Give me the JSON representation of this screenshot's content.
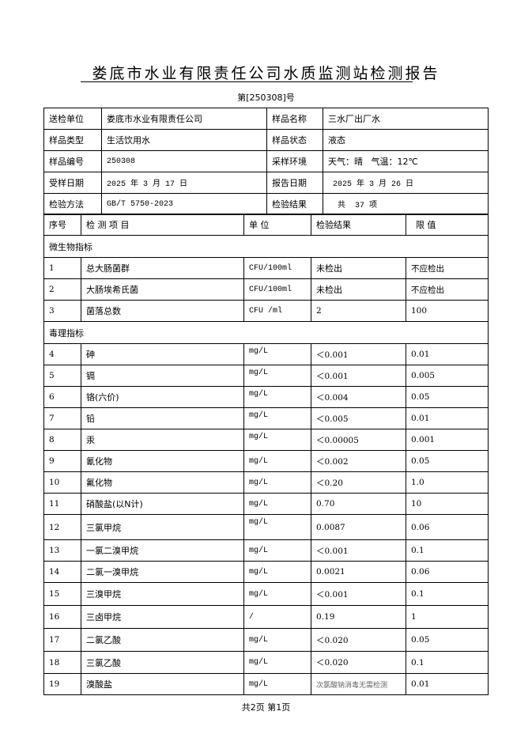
{
  "title": "娄底市水业有限责任公司水质监测站检测报告",
  "doc_number": "第[250308]号",
  "info": [
    {
      "label1": "送检单位",
      "value1": "娄底市水业有限责任公司",
      "label2": "样品名称",
      "value2": "三水厂出厂水"
    },
    {
      "label1": "样品类型",
      "value1": "生活饮用水",
      "label2": "样品状态",
      "value2": "液态"
    },
    {
      "label1": "样品编号",
      "value1": "250308",
      "label2": "采样环境",
      "value2": "天气：晴   气温：12℃"
    },
    {
      "label1": "受样日期",
      "value1": "2025 年 3 月 17 日",
      "label2": "报告日期",
      "value2": " 2025 年 3 月 26 日"
    },
    {
      "label1": "检验方法",
      "value1": "GB/T 5750-2023",
      "label2": "检验结果",
      "value2": "  共  37 项"
    }
  ],
  "headers": {
    "no": "序号",
    "item": "检 测 项 目",
    "unit": "单  位",
    "result": "检验结果",
    "limit": "限  值"
  },
  "rows": [
    {
      "section": "微生物指标"
    },
    {
      "no": "1",
      "item": "总大肠菌群",
      "unit": "CFU/100ml",
      "result": "未检出",
      "limit": "不应检出"
    },
    {
      "no": "2",
      "item": "大肠埃希氏菌",
      "unit": "CFU/100ml",
      "result": "未检出",
      "limit": "不应检出"
    },
    {
      "no": "3",
      "item": "菌落总数",
      "unit": "CFU /ml",
      "result": "2",
      "limit": "100"
    },
    {
      "section": "毒理指标"
    },
    {
      "no": "4",
      "item": "砷",
      "unit": "mg/L",
      "result": "＜0.001",
      "limit": "0.01"
    },
    {
      "no": "5",
      "item": "镉",
      "unit": "mg/L",
      "result": "＜0.001",
      "limit": "0.005"
    },
    {
      "no": "6",
      "item": "铬(六价)",
      "unit": "mg/L",
      "result": "＜0.004",
      "limit": "0.05"
    },
    {
      "no": "7",
      "item": "铅",
      "unit": "mg/L",
      "result": "＜0.005",
      "limit": "0.01"
    },
    {
      "no": "8",
      "item": "汞",
      "unit": "mg/L",
      "result": "＜0.00005",
      "limit": "0.001"
    },
    {
      "no": "9",
      "item": "氰化物",
      "unit": "mg/L",
      "result": "＜0.002",
      "limit": "0.05"
    },
    {
      "no": "10",
      "item": "氟化物",
      "unit": "mg/L",
      "result": "＜0.20",
      "limit": "1.0"
    },
    {
      "no": "11",
      "item": "硝酸盐(以N计)",
      "unit": "mg/L",
      "result": "0.70",
      "limit": "10"
    },
    {
      "no": "12",
      "item": "三氯甲烷",
      "unit": "mg/L",
      "result": "0.0087",
      "limit": "0.06"
    },
    {
      "no": "13",
      "item": "一氯二溴甲烷",
      "unit": "mg/L",
      "result": "＜0.001",
      "limit": "0.1"
    },
    {
      "no": "14",
      "item": "二氯一溴甲烷",
      "unit": "mg/L",
      "result": "0.0021",
      "limit": "0.06"
    },
    {
      "no": "15",
      "item": "三溴甲烷",
      "unit": "mg/L",
      "result": "＜0.001",
      "limit": "0.1"
    },
    {
      "no": "16",
      "item": "三卤甲烷",
      "unit": "/",
      "result": "0.19",
      "limit": "1"
    },
    {
      "no": "17",
      "item": "二氯乙酸",
      "unit": "mg/L",
      "result": "＜0.020",
      "limit": "0.05"
    },
    {
      "no": "18",
      "item": "三氯乙酸",
      "unit": "mg/L",
      "result": "＜0.020",
      "limit": "0.1"
    },
    {
      "no": "19",
      "item": "溴酸盐",
      "unit": "mg/L",
      "result": "次氯酸钠消毒无需检测",
      "limit": "0.01"
    }
  ],
  "footer": "共2页  第1页"
}
